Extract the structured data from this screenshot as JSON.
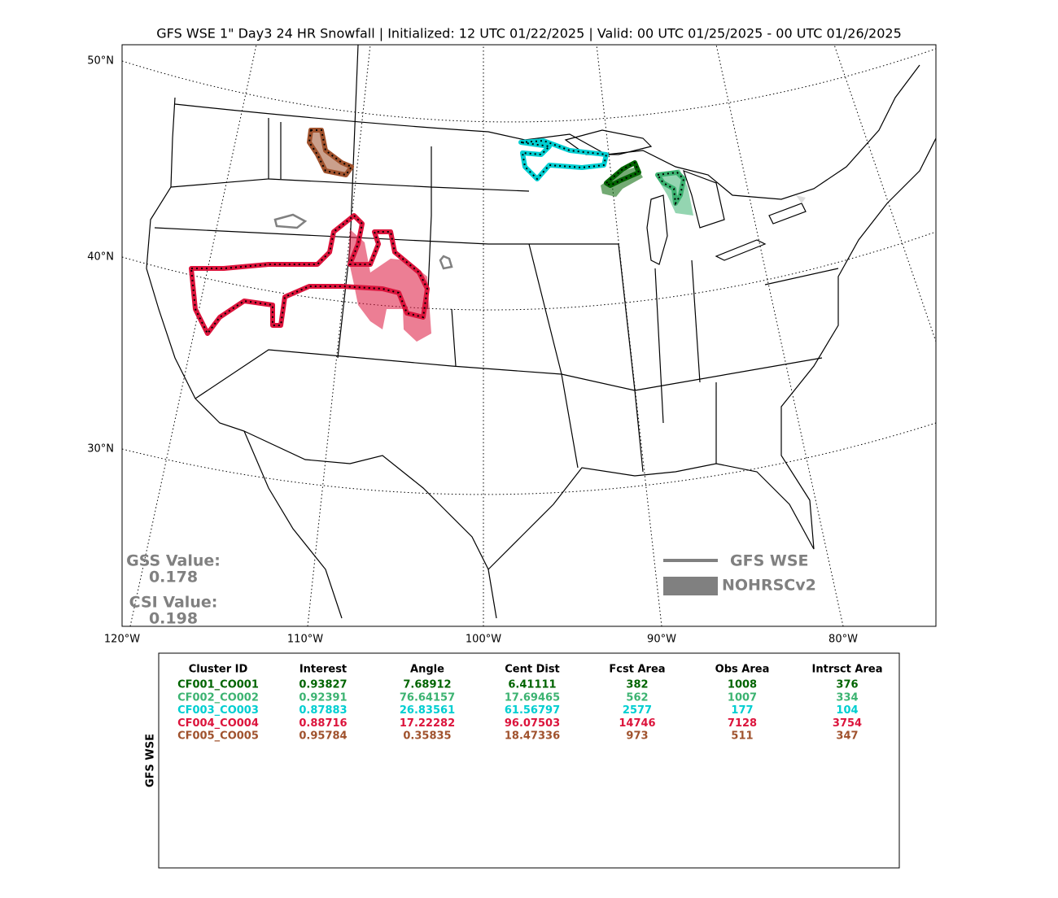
{
  "title": "GFS WSE 1\" Day3 24 HR Snowfall | Initialized: 12 UTC 01/22/2025 | Valid: 00 UTC 01/25/2025 - 00 UTC 01/26/2025",
  "map": {
    "lat_labels": [
      "50°N",
      "40°N",
      "30°N"
    ],
    "lon_labels": [
      "120°W",
      "110°W",
      "100°W",
      "90°W",
      "80°W"
    ]
  },
  "stats": [
    {
      "label": "GSS Value:",
      "value": 0.178
    },
    {
      "label": "CSI Value:",
      "value": 0.198
    }
  ],
  "legend": [
    {
      "label": "GFS WSE",
      "color": "#808080"
    },
    {
      "label": "NOHRSCv2",
      "color": "#808080"
    }
  ],
  "table": {
    "side_label": "GFS WSE",
    "columns": [
      "Cluster ID",
      "Interest",
      "Angle",
      "Cent Dist",
      "Fcst Area",
      "Obs Area",
      "Intrsct Area"
    ],
    "rows": [
      {
        "color": "#006400",
        "cells": [
          "CF001_CO001",
          0.93827,
          7.68912,
          6.41111,
          382,
          1008,
          376
        ]
      },
      {
        "color": "#3cb371",
        "cells": [
          "CF002_CO002",
          0.92391,
          76.64157,
          17.69465,
          562,
          1007,
          334
        ]
      },
      {
        "color": "#00ced1",
        "cells": [
          "CF003_CO003",
          0.87883,
          26.83561,
          61.56797,
          2577,
          177,
          104
        ]
      },
      {
        "color": "#dc143c",
        "cells": [
          "CF004_CO004",
          0.88716,
          17.22282,
          96.07503,
          14746,
          7128,
          3754
        ]
      },
      {
        "color": "#a0522d",
        "cells": [
          "CF005_CO005",
          0.95784,
          0.35835,
          18.47336,
          973,
          511,
          347
        ]
      }
    ]
  }
}
